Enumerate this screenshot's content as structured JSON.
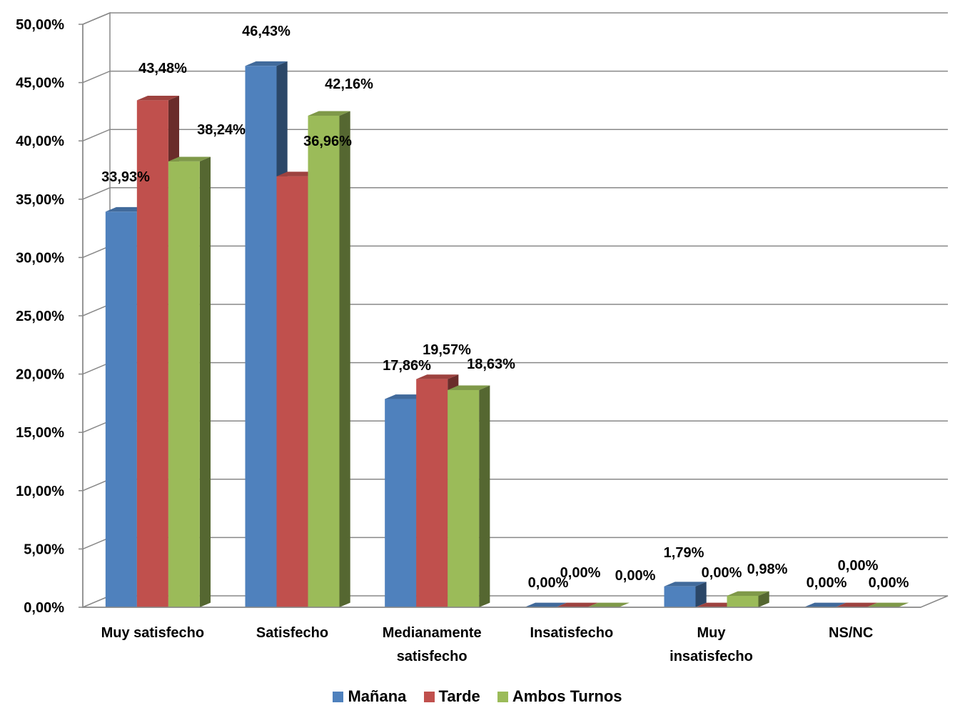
{
  "chart_data": {
    "type": "bar",
    "variant": "3d-clustered-column",
    "categories": [
      "Muy satisfecho",
      "Satisfecho",
      "Medianamente satisfecho",
      "Insatisfecho",
      "Muy insatisfecho",
      "NS/NC"
    ],
    "category_lines": [
      [
        "Muy satisfecho"
      ],
      [
        "Satisfecho"
      ],
      [
        "Medianamente",
        "satisfecho"
      ],
      [
        "Insatisfecho"
      ],
      [
        "Muy",
        "insatisfecho"
      ],
      [
        "NS/NC"
      ]
    ],
    "series": [
      {
        "name": "Mañana",
        "color": "#4f81bd",
        "values": [
          33.93,
          46.43,
          17.86,
          0.0,
          1.79,
          0.0
        ],
        "labels": [
          "33,93%",
          "46,43%",
          "17,86%",
          "0,00%",
          "1,79%",
          "0,00%"
        ]
      },
      {
        "name": "Tarde",
        "color": "#c0504d",
        "values": [
          43.48,
          36.96,
          19.57,
          0.0,
          0.0,
          0.0
        ],
        "labels": [
          "43,48%",
          "36,96%",
          "19,57%",
          "0,00%",
          "0,00%",
          "0,00%"
        ]
      },
      {
        "name": "Ambos Turnos",
        "color": "#9bbb59",
        "values": [
          38.24,
          42.16,
          18.63,
          0.0,
          0.98,
          0.0
        ],
        "labels": [
          "38,24%",
          "42,16%",
          "18,63%",
          "0,00%",
          "0,98%",
          "0,00%"
        ]
      }
    ],
    "yticks": [
      "0,00%",
      "5,00%",
      "10,00%",
      "15,00%",
      "20,00%",
      "25,00%",
      "30,00%",
      "35,00%",
      "40,00%",
      "45,00%",
      "50,00%"
    ],
    "ylim": [
      0,
      50
    ],
    "grid": true,
    "legend_position": "bottom"
  }
}
